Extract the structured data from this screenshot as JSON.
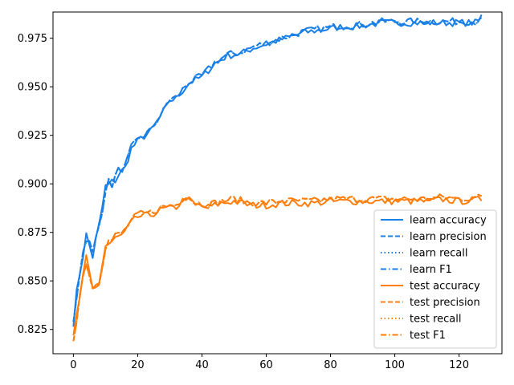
{
  "chart_data": {
    "type": "line",
    "title": "",
    "xlabel": "",
    "ylabel": "",
    "xlim": [
      -6.35,
      133.35
    ],
    "ylim": [
      0.8125,
      0.9885
    ],
    "xticks": [
      0,
      20,
      40,
      60,
      80,
      100,
      120
    ],
    "yticks": [
      0.825,
      0.85,
      0.875,
      0.9,
      0.925,
      0.95,
      0.975
    ],
    "ytick_labels": [
      "0.825",
      "0.850",
      "0.875",
      "0.900",
      "0.925",
      "0.950",
      "0.975"
    ],
    "grid": false,
    "legend_position": "lower-right",
    "colors": {
      "learn": "#1f77b4",
      "learn_bright": "#1a80e6",
      "test": "#ff7f0e"
    },
    "learn_accuracy_anchors": [
      [
        0,
        0.83
      ],
      [
        2,
        0.855
      ],
      [
        4,
        0.873
      ],
      [
        6,
        0.863
      ],
      [
        8,
        0.878
      ],
      [
        10,
        0.898
      ],
      [
        12,
        0.9
      ],
      [
        14,
        0.905
      ],
      [
        16,
        0.908
      ],
      [
        18,
        0.918
      ],
      [
        20,
        0.922
      ],
      [
        24,
        0.927
      ],
      [
        28,
        0.937
      ],
      [
        30,
        0.943
      ],
      [
        32,
        0.944
      ],
      [
        36,
        0.952
      ],
      [
        40,
        0.955
      ],
      [
        44,
        0.962
      ],
      [
        48,
        0.966
      ],
      [
        52,
        0.967
      ],
      [
        56,
        0.97
      ],
      [
        60,
        0.972
      ],
      [
        64,
        0.974
      ],
      [
        68,
        0.976
      ],
      [
        72,
        0.978
      ],
      [
        76,
        0.979
      ],
      [
        80,
        0.98
      ],
      [
        84,
        0.981
      ],
      [
        88,
        0.981
      ],
      [
        92,
        0.982
      ],
      [
        96,
        0.983
      ],
      [
        100,
        0.983
      ],
      [
        105,
        0.983
      ],
      [
        110,
        0.983
      ],
      [
        115,
        0.983
      ],
      [
        120,
        0.983
      ],
      [
        125,
        0.983
      ],
      [
        127,
        0.985
      ]
    ],
    "test_accuracy_anchors": [
      [
        0,
        0.82
      ],
      [
        2,
        0.842
      ],
      [
        4,
        0.86
      ],
      [
        6,
        0.845
      ],
      [
        8,
        0.85
      ],
      [
        10,
        0.868
      ],
      [
        12,
        0.87
      ],
      [
        14,
        0.872
      ],
      [
        16,
        0.875
      ],
      [
        18,
        0.88
      ],
      [
        20,
        0.883
      ],
      [
        24,
        0.884
      ],
      [
        28,
        0.887
      ],
      [
        32,
        0.888
      ],
      [
        35,
        0.893
      ],
      [
        38,
        0.889
      ],
      [
        42,
        0.888
      ],
      [
        46,
        0.89
      ],
      [
        50,
        0.891
      ],
      [
        55,
        0.889
      ],
      [
        60,
        0.889
      ],
      [
        65,
        0.89
      ],
      [
        70,
        0.89
      ],
      [
        75,
        0.89
      ],
      [
        80,
        0.891
      ],
      [
        85,
        0.891
      ],
      [
        90,
        0.891
      ],
      [
        95,
        0.891
      ],
      [
        100,
        0.891
      ],
      [
        105,
        0.891
      ],
      [
        110,
        0.891
      ],
      [
        115,
        0.892
      ],
      [
        120,
        0.891
      ],
      [
        127,
        0.892
      ]
    ],
    "series": [
      {
        "name": "learn accuracy",
        "color": "#1a80e6",
        "dash": "solid"
      },
      {
        "name": "learn precision",
        "color": "#1a80e6",
        "dash": "dashed"
      },
      {
        "name": "learn recall",
        "color": "#1a80e6",
        "dash": "dotted"
      },
      {
        "name": "learn F1",
        "color": "#1a80e6",
        "dash": "dashdot"
      },
      {
        "name": "test accuracy",
        "color": "#ff7f0e",
        "dash": "solid"
      },
      {
        "name": "test precision",
        "color": "#ff7f0e",
        "dash": "dashed"
      },
      {
        "name": "test recall",
        "color": "#ff7f0e",
        "dash": "dotted"
      },
      {
        "name": "test F1",
        "color": "#ff7f0e",
        "dash": "dashdot"
      }
    ]
  }
}
